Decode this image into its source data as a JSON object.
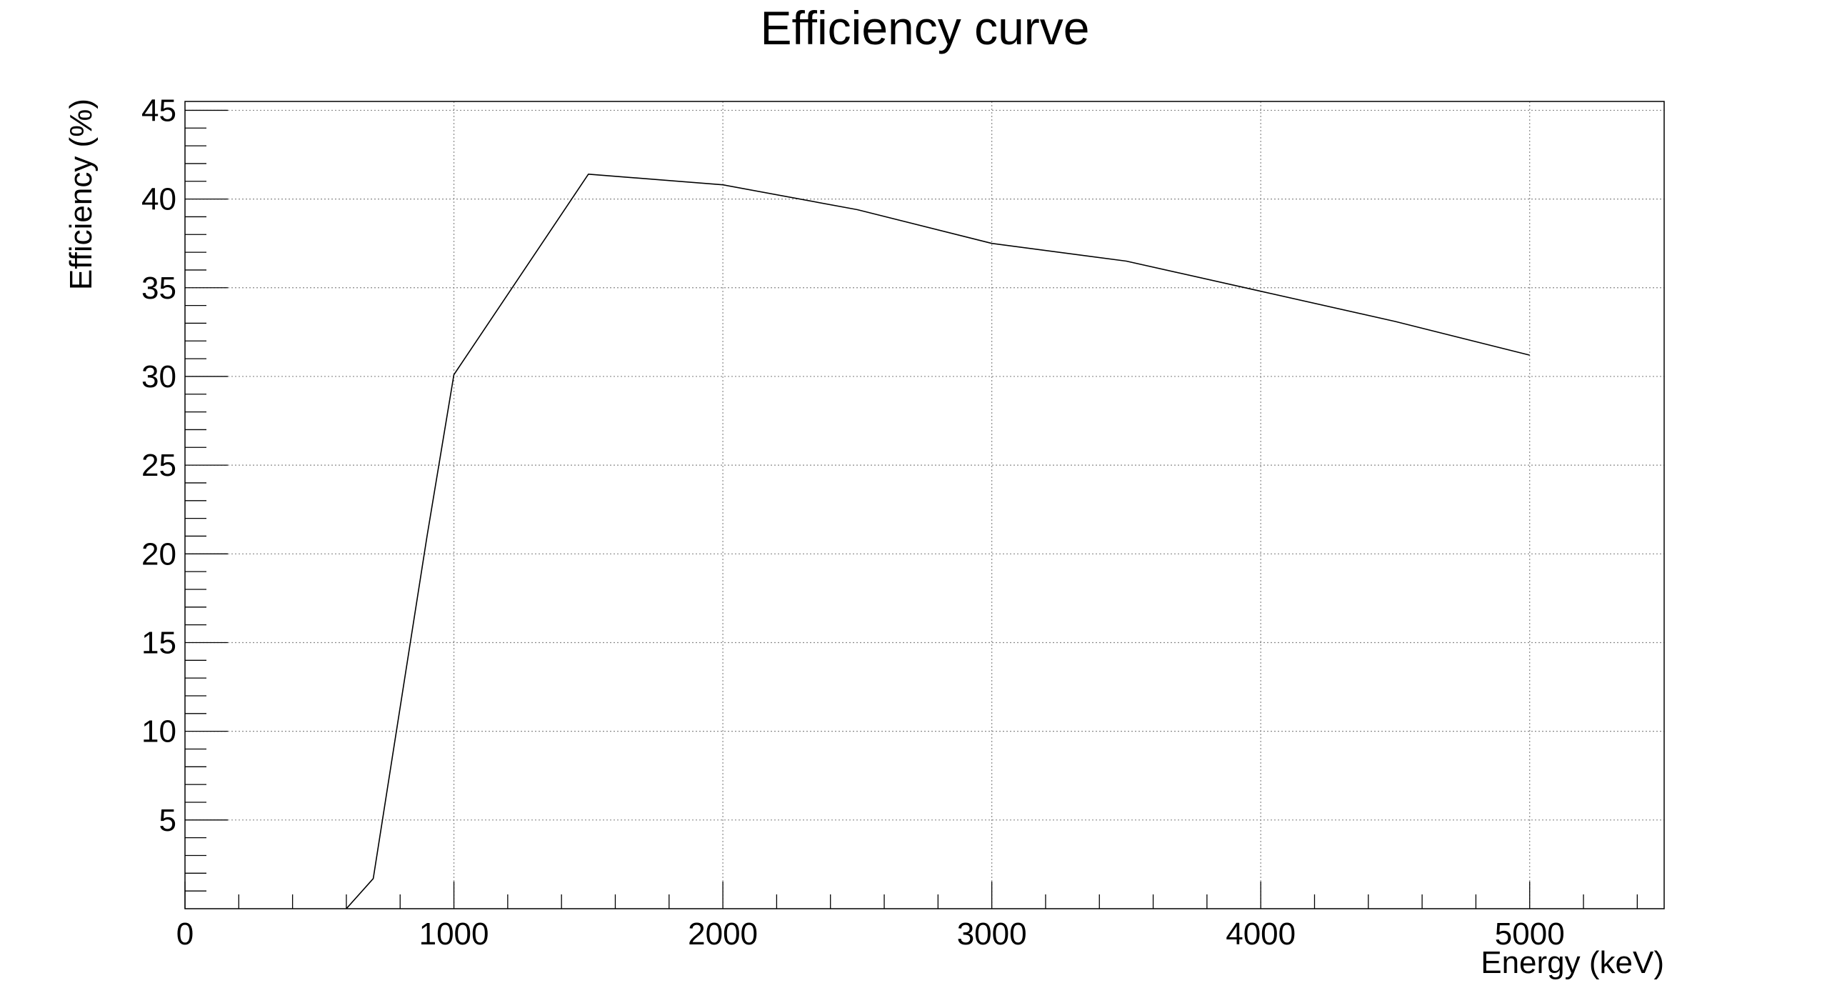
{
  "chart_data": {
    "type": "line",
    "title": "Efficiency curve",
    "xlabel": "Energy (keV)",
    "ylabel": "Efficiency (%)",
    "xlim": [
      0,
      5500
    ],
    "ylim": [
      0,
      45.5
    ],
    "xticks": [
      0,
      1000,
      2000,
      3000,
      4000,
      5000
    ],
    "xtick_labels": [
      "0",
      "1000",
      "2000",
      "3000",
      "4000",
      "5000"
    ],
    "yticks": [
      5,
      10,
      15,
      20,
      25,
      30,
      35,
      40,
      45
    ],
    "ytick_labels": [
      "5",
      "10",
      "15",
      "20",
      "25",
      "30",
      "35",
      "40",
      "45"
    ],
    "grid": true,
    "legend": "none",
    "series": [
      {
        "color": "#000000",
        "x": [
          600,
          700,
          900,
          1000,
          1500,
          2000,
          2500,
          3000,
          3500,
          4000,
          4500,
          5000
        ],
        "y": [
          0,
          1.7,
          21,
          30.1,
          41.4,
          40.8,
          39.4,
          37.5,
          36.5,
          34.8,
          33.1,
          31.2
        ]
      }
    ]
  }
}
